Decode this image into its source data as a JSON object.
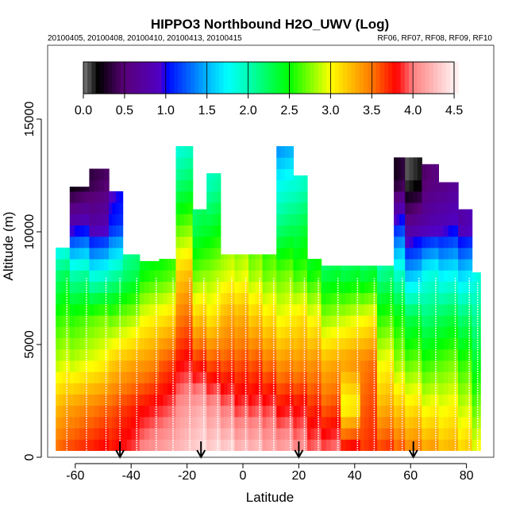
{
  "chart_data": {
    "type": "heatmap",
    "title": "HIPPO3 Northbound H2O_UWV (Log)",
    "subtitle_left": "20100405, 20100408, 20100410, 20100413, 20100415",
    "subtitle_right": "RF06, RF07, RF08, RF09, RF10",
    "xlabel": "Latitude",
    "ylabel": "Altitude (m)",
    "xlim": [
      -70,
      90
    ],
    "ylim": [
      0,
      18000
    ],
    "x_ticks": [
      "-60",
      "-40",
      "-20",
      "0",
      "20",
      "40",
      "60",
      "80"
    ],
    "x_tick_values": [
      -60,
      -40,
      -20,
      0,
      20,
      40,
      60,
      80
    ],
    "y_ticks": [
      "0",
      "5000",
      "10000",
      "15000"
    ],
    "y_tick_values": [
      0,
      5000,
      10000,
      15000
    ],
    "colorbar": {
      "range": [
        0,
        4.5
      ],
      "ticks": [
        "0.0",
        "0.5",
        "1.0",
        "1.5",
        "2.0",
        "2.5",
        "3.0",
        "3.5",
        "4.0",
        "4.5"
      ],
      "tick_values": [
        0,
        0.5,
        1,
        1.5,
        2,
        2.5,
        3,
        3.5,
        4,
        4.5
      ],
      "placement": "top-inside",
      "stops": [
        {
          "v": 0.0,
          "c": "#7a7a7a"
        },
        {
          "v": 0.18,
          "c": "#000000"
        },
        {
          "v": 0.5,
          "c": "#5a0078"
        },
        {
          "v": 0.95,
          "c": "#5000c8"
        },
        {
          "v": 1.0,
          "c": "#0000ff"
        },
        {
          "v": 1.5,
          "c": "#00b4ff"
        },
        {
          "v": 1.75,
          "c": "#00ffff"
        },
        {
          "v": 2.0,
          "c": "#00ffb4"
        },
        {
          "v": 2.5,
          "c": "#00ff00"
        },
        {
          "v": 3.0,
          "c": "#ffff00"
        },
        {
          "v": 3.5,
          "c": "#ff7800"
        },
        {
          "v": 3.8,
          "c": "#ff0000"
        },
        {
          "v": 4.0,
          "c": "#ff8080"
        },
        {
          "v": 4.5,
          "c": "#fff0f0"
        }
      ]
    },
    "altitude_levels": [
      0,
      2000,
      4000,
      6000,
      8000,
      10000,
      12000,
      14000
    ],
    "columns": [
      {
        "lat": [
          -67,
          -62
        ],
        "top": 9300,
        "values": [
          3.6,
          3.3,
          2.9,
          2.6,
          2.2,
          1.4
        ]
      },
      {
        "lat": [
          -62,
          -55
        ],
        "top": 12000,
        "values": [
          3.7,
          3.4,
          2.9,
          2.6,
          2.0,
          0.9,
          0.2
        ]
      },
      {
        "lat": [
          -55,
          -48
        ],
        "top": 12800,
        "values": [
          3.8,
          3.5,
          3.0,
          2.7,
          1.8,
          0.8,
          0.4
        ]
      },
      {
        "lat": [
          -48,
          -43
        ],
        "top": 11800,
        "values": [
          3.8,
          3.6,
          3.2,
          2.7,
          2.0,
          1.1,
          0.9
        ]
      },
      {
        "lat": [
          -43,
          -37
        ],
        "top": 9000,
        "values": [
          3.9,
          3.7,
          3.3,
          2.8,
          2.2,
          2.0
        ]
      },
      {
        "lat": [
          -37,
          -30
        ],
        "top": 8700,
        "values": [
          4.1,
          3.8,
          3.4,
          3.0,
          2.5,
          2.3
        ]
      },
      {
        "lat": [
          -30,
          -24
        ],
        "top": 8800,
        "values": [
          4.2,
          3.9,
          3.6,
          3.1,
          2.6,
          2.4
        ]
      },
      {
        "lat": [
          -24,
          -18
        ],
        "top": 13800,
        "values": [
          4.3,
          4.1,
          3.8,
          3.5,
          3.2,
          2.7,
          2.2,
          1.8
        ]
      },
      {
        "lat": [
          -18,
          -13
        ],
        "top": 11000,
        "values": [
          4.4,
          4.2,
          3.7,
          3.2,
          2.7,
          2.3,
          2.1
        ]
      },
      {
        "lat": [
          -13,
          -8
        ],
        "top": 12600,
        "values": [
          4.4,
          4.1,
          3.6,
          3.1,
          2.8,
          2.4,
          2.0
        ]
      },
      {
        "lat": [
          -8,
          -3
        ],
        "top": 9000,
        "values": [
          4.4,
          4.0,
          3.6,
          3.3,
          2.9,
          2.7
        ]
      },
      {
        "lat": [
          -3,
          2
        ],
        "top": 9000,
        "values": [
          4.3,
          3.9,
          3.6,
          3.3,
          2.9,
          2.7
        ]
      },
      {
        "lat": [
          2,
          7
        ],
        "top": 9000,
        "values": [
          4.3,
          3.9,
          3.6,
          3.2,
          2.8,
          2.6
        ]
      },
      {
        "lat": [
          7,
          12
        ],
        "top": 9000,
        "values": [
          4.2,
          3.9,
          3.5,
          3.1,
          2.7,
          2.5
        ]
      },
      {
        "lat": [
          12,
          18
        ],
        "top": 13800,
        "values": [
          4.2,
          3.8,
          3.4,
          3.0,
          2.7,
          2.2,
          1.8,
          1.3
        ]
      },
      {
        "lat": [
          18,
          23
        ],
        "top": 12500,
        "values": [
          4.1,
          3.8,
          3.4,
          3.1,
          2.6,
          2.3,
          1.9
        ]
      },
      {
        "lat": [
          23,
          28
        ],
        "top": 8800,
        "values": [
          4.0,
          3.7,
          3.4,
          3.0,
          2.5,
          2.3
        ]
      },
      {
        "lat": [
          28,
          35
        ],
        "top": 8500,
        "values": [
          4.0,
          3.6,
          3.3,
          2.8,
          2.3,
          2.1
        ]
      },
      {
        "lat": [
          35,
          42
        ],
        "top": 8500,
        "values": [
          3.9,
          3.0,
          3.4,
          2.9,
          2.3,
          2.1
        ]
      },
      {
        "lat": [
          42,
          48
        ],
        "top": 8500,
        "values": [
          3.7,
          3.6,
          3.5,
          3.0,
          2.3,
          2.1
        ]
      },
      {
        "lat": [
          48,
          54
        ],
        "top": 8500,
        "values": [
          3.7,
          3.3,
          3.0,
          2.6,
          2.1,
          1.9
        ]
      },
      {
        "lat": [
          54,
          58
        ],
        "top": 13300,
        "values": [
          3.6,
          3.2,
          2.8,
          2.5,
          1.9,
          1.1,
          0.3
        ]
      },
      {
        "lat": [
          58,
          64
        ],
        "top": 13300,
        "values": [
          3.5,
          3.1,
          2.7,
          2.3,
          1.5,
          0.7,
          0.1
        ]
      },
      {
        "lat": [
          64,
          70
        ],
        "top": 13000,
        "values": [
          3.4,
          3.0,
          2.6,
          2.2,
          1.8,
          0.8,
          0.5
        ]
      },
      {
        "lat": [
          70,
          77
        ],
        "top": 12200,
        "values": [
          3.3,
          3.0,
          2.7,
          2.3,
          1.7,
          0.9,
          0.6
        ]
      },
      {
        "lat": [
          77,
          82
        ],
        "top": 11000,
        "values": [
          3.2,
          2.9,
          2.6,
          2.2,
          1.6,
          0.8
        ]
      },
      {
        "lat": [
          82,
          85
        ],
        "top": 8200,
        "values": [
          3.0,
          2.7,
          2.4,
          2.1,
          1.8
        ]
      }
    ],
    "flight_markers_lat": [
      -44,
      -15,
      20,
      61
    ]
  }
}
